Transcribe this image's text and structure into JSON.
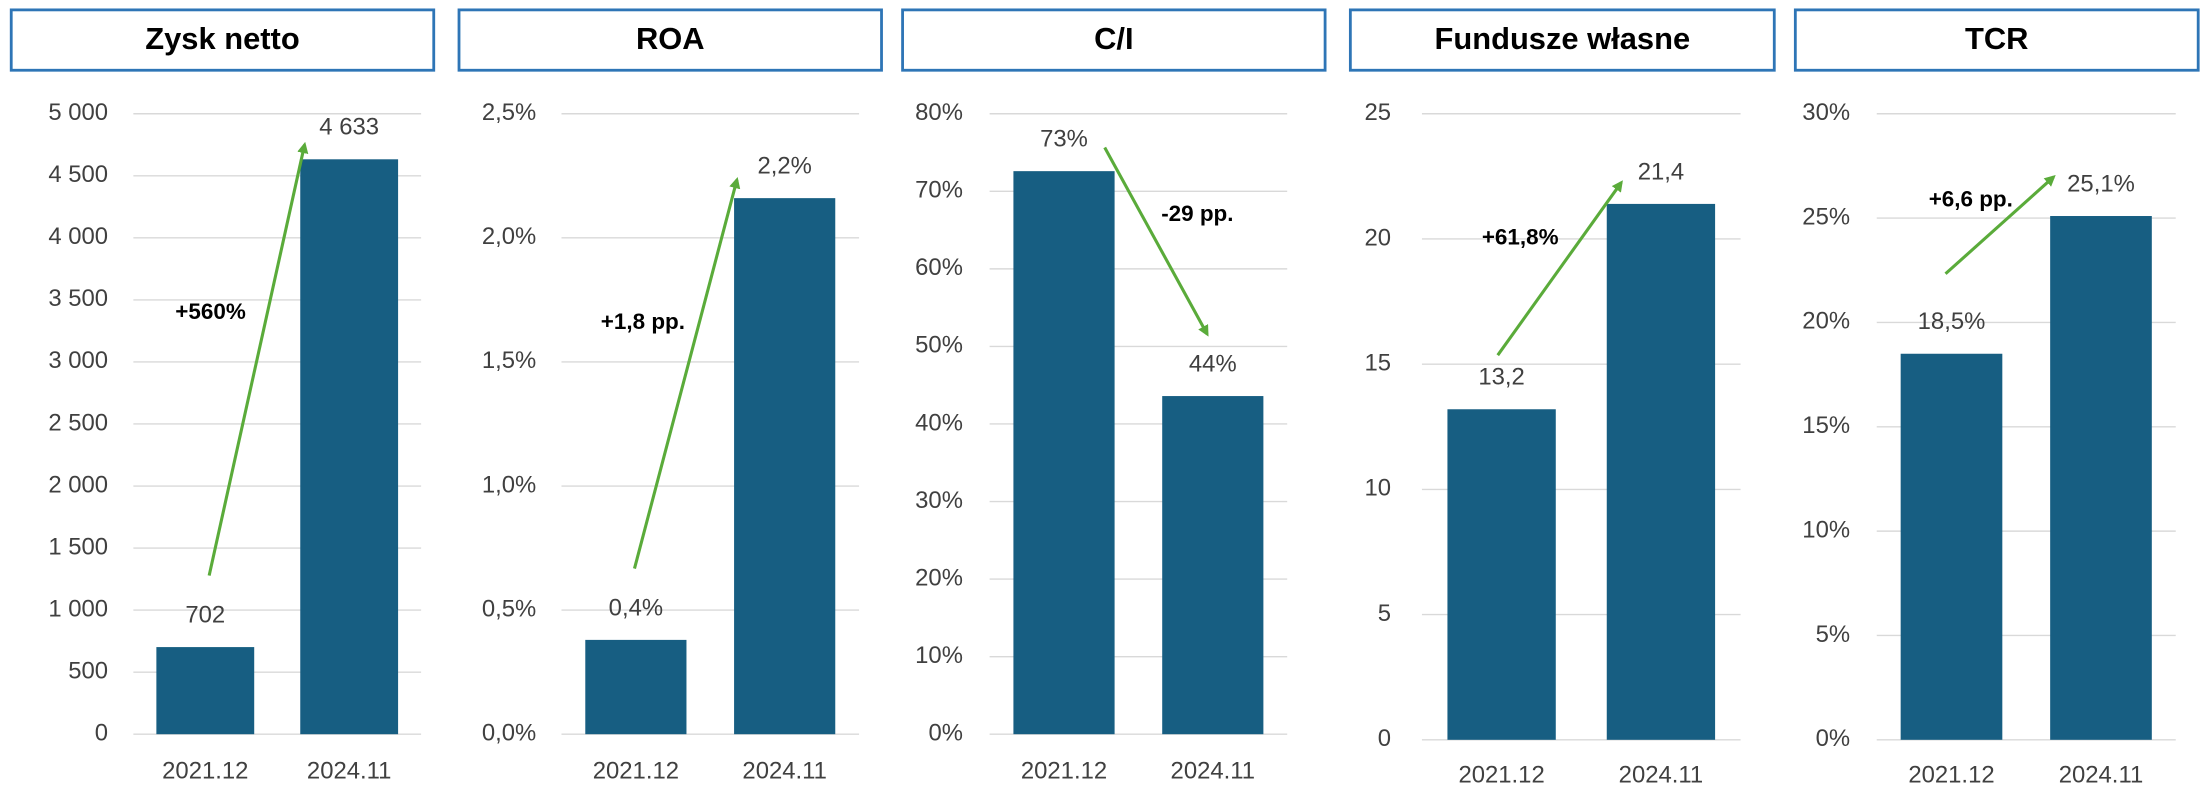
{
  "chart_data": [
    {
      "type": "bar",
      "title": "Zysk netto",
      "categories": [
        "2021.12",
        "2024.11"
      ],
      "values": [
        702,
        4633
      ],
      "value_labels": [
        "702",
        "4 633"
      ],
      "color": "#175e82",
      "ylim": [
        0,
        5000
      ],
      "yticks": [
        0,
        500,
        {
          "value": 1000,
          "label": "1 000"
        },
        {
          "value": 1500,
          "label": "1 500"
        },
        {
          "value": 2000,
          "label": "2 000"
        },
        {
          "value": 2500,
          "label": "2 500"
        },
        {
          "value": 3000,
          "label": "3 000"
        },
        {
          "value": 3500,
          "label": "3 500"
        },
        {
          "value": 4000,
          "label": "4 000"
        },
        {
          "value": 4500,
          "label": "4 500"
        },
        {
          "value": 5000,
          "label": "5 000"
        }
      ],
      "grid": true,
      "annotation": "+560%"
    },
    {
      "type": "bar",
      "title": "ROA",
      "categories": [
        "2021.12",
        "2024.11"
      ],
      "values": [
        0.38,
        2.16
      ],
      "value_labels": [
        "0,4%",
        "2,2%"
      ],
      "color": "#175e82",
      "ylim": [
        0,
        2.5
      ],
      "yticks": [
        {
          "value": 0,
          "label": "0,0%"
        },
        {
          "value": 0.5,
          "label": "0,5%"
        },
        {
          "value": 1,
          "label": "1,0%"
        },
        {
          "value": 1.5,
          "label": "1,5%"
        },
        {
          "value": 2,
          "label": "2,0%"
        },
        {
          "value": 2.5,
          "label": "2,5%"
        }
      ],
      "grid": true,
      "annotation": "+1,8 pp."
    },
    {
      "type": "bar",
      "title": "C/I",
      "categories": [
        "2021.12",
        "2024.11"
      ],
      "values": [
        72.6,
        43.6
      ],
      "value_labels": [
        "73%",
        "44%"
      ],
      "color": "#175e82",
      "ylim": [
        0,
        80
      ],
      "yticks": [
        {
          "value": 0,
          "label": "0%"
        },
        {
          "value": 10,
          "label": "10%"
        },
        {
          "value": 20,
          "label": "20%"
        },
        {
          "value": 30,
          "label": "30%"
        },
        {
          "value": 40,
          "label": "40%"
        },
        {
          "value": 50,
          "label": "50%"
        },
        {
          "value": 60,
          "label": "60%"
        },
        {
          "value": 70,
          "label": "70%"
        },
        {
          "value": 80,
          "label": "80%"
        }
      ],
      "grid": true,
      "annotation": "-29 pp."
    },
    {
      "type": "bar",
      "title": "Fundusze własne",
      "categories": [
        "2021.12",
        "2024.11"
      ],
      "values": [
        13.2,
        21.4
      ],
      "value_labels": [
        "13,2",
        "21,4"
      ],
      "color": "#175e82",
      "ylim": [
        0,
        25
      ],
      "yticks": [
        0,
        5,
        10,
        15,
        20,
        25
      ],
      "grid": true,
      "annotation": "+61,8%"
    },
    {
      "type": "bar",
      "title": "TCR",
      "categories": [
        "2021.12",
        "2024.11"
      ],
      "values": [
        18.5,
        25.1
      ],
      "value_labels": [
        "18,5%",
        "25,1%"
      ],
      "color": "#175e82",
      "ylim": [
        0,
        30
      ],
      "yticks": [
        {
          "value": 0,
          "label": "0%"
        },
        {
          "value": 5,
          "label": "5%"
        },
        {
          "value": 10,
          "label": "10%"
        },
        {
          "value": 15,
          "label": "15%"
        },
        {
          "value": 20,
          "label": "20%"
        },
        {
          "value": 25,
          "label": "25%"
        },
        {
          "value": 30,
          "label": "30%"
        }
      ],
      "grid": true,
      "annotation": "+6,6 pp."
    }
  ]
}
